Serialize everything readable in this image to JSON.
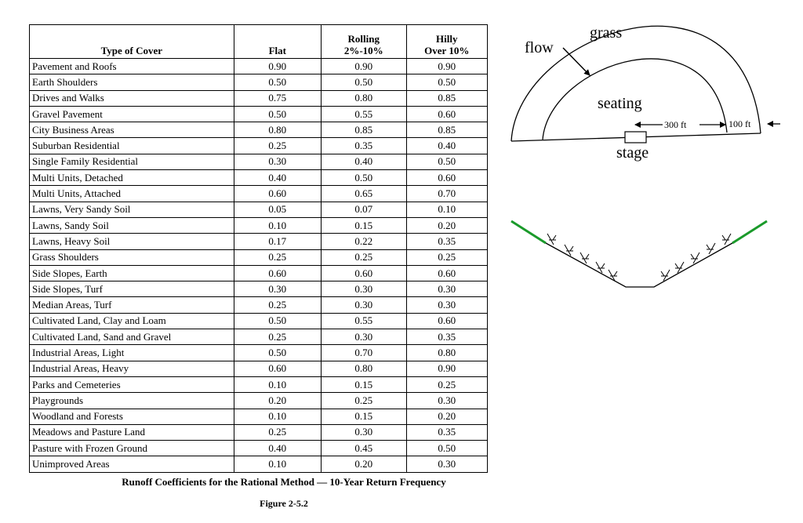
{
  "table": {
    "headers": {
      "type": "Type of Cover",
      "flat": "Flat",
      "rolling_line1": "Rolling",
      "rolling_line2": "2%-10%",
      "hilly_line1": "Hilly",
      "hilly_line2": "Over 10%"
    },
    "rows": [
      {
        "cover": "Pavement and Roofs",
        "flat": "0.90",
        "rolling": "0.90",
        "hilly": "0.90"
      },
      {
        "cover": "Earth Shoulders",
        "flat": "0.50",
        "rolling": "0.50",
        "hilly": "0.50"
      },
      {
        "cover": "Drives and Walks",
        "flat": "0.75",
        "rolling": "0.80",
        "hilly": "0.85"
      },
      {
        "cover": "Gravel Pavement",
        "flat": "0.50",
        "rolling": "0.55",
        "hilly": "0.60"
      },
      {
        "cover": "City Business Areas",
        "flat": "0.80",
        "rolling": "0.85",
        "hilly": "0.85"
      },
      {
        "cover": "Suburban Residential",
        "flat": "0.25",
        "rolling": "0.35",
        "hilly": "0.40"
      },
      {
        "cover": "Single Family Residential",
        "flat": "0.30",
        "rolling": "0.40",
        "hilly": "0.50"
      },
      {
        "cover": "Multi Units, Detached",
        "flat": "0.40",
        "rolling": "0.50",
        "hilly": "0.60"
      },
      {
        "cover": "Multi Units, Attached",
        "flat": "0.60",
        "rolling": "0.65",
        "hilly": "0.70"
      },
      {
        "cover": "Lawns, Very Sandy Soil",
        "flat": "0.05",
        "rolling": "0.07",
        "hilly": "0.10"
      },
      {
        "cover": "Lawns, Sandy Soil",
        "flat": "0.10",
        "rolling": "0.15",
        "hilly": "0.20"
      },
      {
        "cover": "Lawns, Heavy Soil",
        "flat": "0.17",
        "rolling": "0.22",
        "hilly": "0.35"
      },
      {
        "cover": "Grass Shoulders",
        "flat": "0.25",
        "rolling": "0.25",
        "hilly": "0.25"
      },
      {
        "cover": "Side Slopes, Earth",
        "flat": "0.60",
        "rolling": "0.60",
        "hilly": "0.60"
      },
      {
        "cover": "Side Slopes, Turf",
        "flat": "0.30",
        "rolling": "0.30",
        "hilly": "0.30"
      },
      {
        "cover": "Median Areas, Turf",
        "flat": "0.25",
        "rolling": "0.30",
        "hilly": "0.30"
      },
      {
        "cover": "Cultivated Land, Clay and Loam",
        "flat": "0.50",
        "rolling": "0.55",
        "hilly": "0.60"
      },
      {
        "cover": "Cultivated Land, Sand and Gravel",
        "flat": "0.25",
        "rolling": "0.30",
        "hilly": "0.35"
      },
      {
        "cover": "Industrial Areas, Light",
        "flat": "0.50",
        "rolling": "0.70",
        "hilly": "0.80"
      },
      {
        "cover": "Industrial Areas, Heavy",
        "flat": "0.60",
        "rolling": "0.80",
        "hilly": "0.90"
      },
      {
        "cover": "Parks and Cemeteries",
        "flat": "0.10",
        "rolling": "0.15",
        "hilly": "0.25"
      },
      {
        "cover": "Playgrounds",
        "flat": "0.20",
        "rolling": "0.25",
        "hilly": "0.30"
      },
      {
        "cover": "Woodland and Forests",
        "flat": "0.10",
        "rolling": "0.15",
        "hilly": "0.20"
      },
      {
        "cover": "Meadows and Pasture Land",
        "flat": "0.25",
        "rolling": "0.30",
        "hilly": "0.35"
      },
      {
        "cover": "Pasture with Frozen Ground",
        "flat": "0.40",
        "rolling": "0.45",
        "hilly": "0.50"
      },
      {
        "cover": "Unimproved Areas",
        "flat": "0.10",
        "rolling": "0.20",
        "hilly": "0.30"
      }
    ]
  },
  "caption": "Runoff Coefficients for the Rational Method — 10-Year Return Frequency",
  "figure_label": "Figure 2-5.2",
  "stage_diagram": {
    "grass_label": "grass",
    "flow_label": "flow",
    "seating_label": "seating",
    "stage_label": "stage",
    "dim_300": "300 ft",
    "dim_100": "100 ft"
  },
  "slope_diagram": {
    "grass_color": "#1a9a2a",
    "line_color": "#000000"
  }
}
